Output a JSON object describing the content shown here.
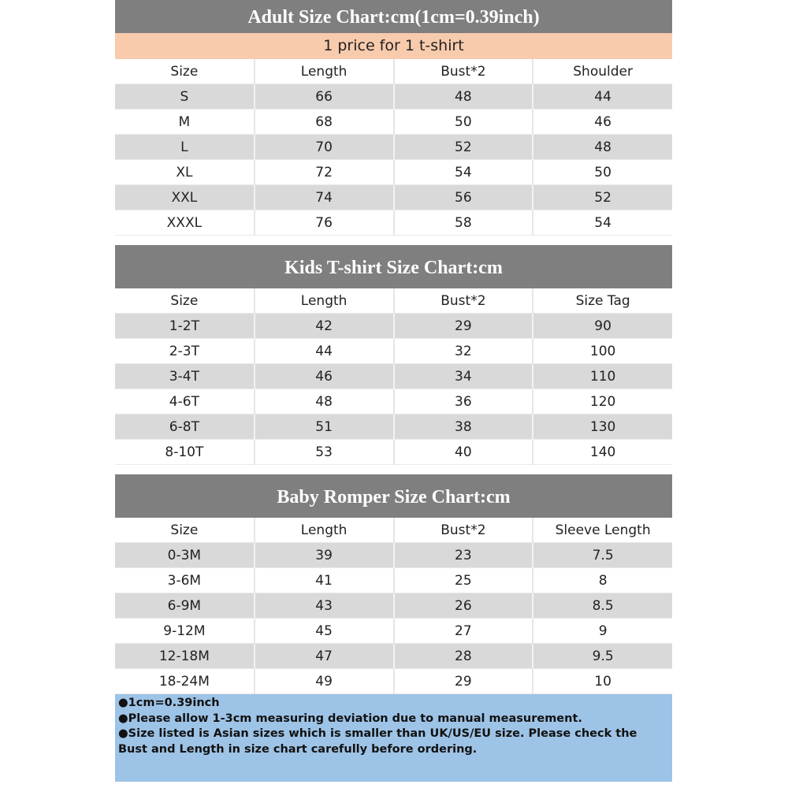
{
  "adult": {
    "title": "Adult Size Chart:cm(1cm=0.39inch)",
    "subtitle": "1 price for 1 t-shirt",
    "headers": [
      "Size",
      "Length",
      "Bust*2",
      "Shoulder"
    ],
    "rows": [
      [
        "S",
        "66",
        "48",
        "44"
      ],
      [
        "M",
        "68",
        "50",
        "46"
      ],
      [
        "L",
        "70",
        "52",
        "48"
      ],
      [
        "XL",
        "72",
        "54",
        "50"
      ],
      [
        "XXL",
        "74",
        "56",
        "52"
      ],
      [
        "XXXL",
        "76",
        "58",
        "54"
      ]
    ]
  },
  "kids": {
    "title": "Kids T-shirt Size Chart:cm",
    "headers": [
      "Size",
      "Length",
      "Bust*2",
      "Size Tag"
    ],
    "rows": [
      [
        "1-2T",
        "42",
        "29",
        "90"
      ],
      [
        "2-3T",
        "44",
        "32",
        "100"
      ],
      [
        "3-4T",
        "46",
        "34",
        "110"
      ],
      [
        "4-6T",
        "48",
        "36",
        "120"
      ],
      [
        "6-8T",
        "51",
        "38",
        "130"
      ],
      [
        "8-10T",
        "53",
        "40",
        "140"
      ]
    ]
  },
  "baby": {
    "title": "Baby Romper Size Chart:cm",
    "headers": [
      "Size",
      "Length",
      "Bust*2",
      "Sleeve Length"
    ],
    "rows": [
      [
        "0-3M",
        "39",
        "23",
        "7.5"
      ],
      [
        "3-6M",
        "41",
        "25",
        "8"
      ],
      [
        "6-9M",
        "43",
        "26",
        "8.5"
      ],
      [
        "9-12M",
        "45",
        "27",
        "9"
      ],
      [
        "12-18M",
        "47",
        "28",
        "9.5"
      ],
      [
        "18-24M",
        "49",
        "29",
        "10"
      ]
    ]
  },
  "notes": [
    "●1cm=0.39inch",
    "●Please allow 1-3cm measuring deviation due to manual measurement.",
    "●Size listed is Asian sizes which is smaller than UK/US/EU size. Please check the Bust and Length in size chart carefully before ordering."
  ],
  "colors": {
    "title_bg": "#7f7f7f",
    "subtitle_bg": "#f8cbad",
    "row_alt_bg": "#d9d9d9",
    "note_bg": "#9dc3e6"
  }
}
